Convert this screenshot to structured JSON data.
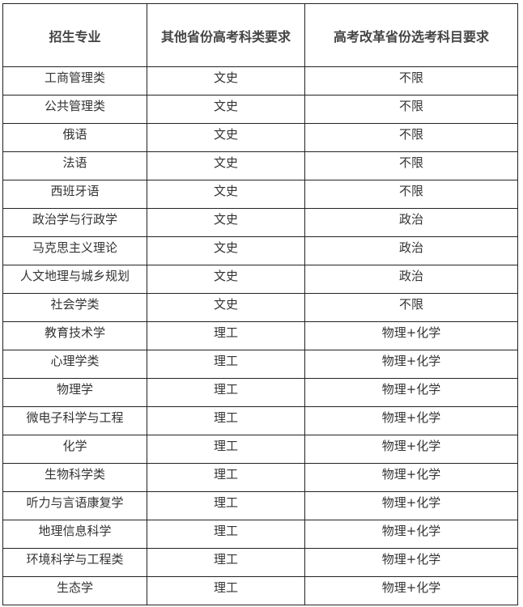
{
  "headers": [
    "招生专业",
    "其他省份高考科类要求",
    "高考改革省份选考科目要求"
  ],
  "rows": [
    [
      "工商管理类",
      "文史",
      "不限"
    ],
    [
      "公共管理类",
      "文史",
      "不限"
    ],
    [
      "俄语",
      "文史",
      "不限"
    ],
    [
      "法语",
      "文史",
      "不限"
    ],
    [
      "西班牙语",
      "文史",
      "不限"
    ],
    [
      "政治学与行政学",
      "文史",
      "政治"
    ],
    [
      "马克思主义理论",
      "文史",
      "政治"
    ],
    [
      "人文地理与城乡规划",
      "文史",
      "政治"
    ],
    [
      "社会学类",
      "文史",
      "不限"
    ],
    [
      "教育技术学",
      "理工",
      "物理+化学"
    ],
    [
      "心理学类",
      "理工",
      "物理+化学"
    ],
    [
      "物理学",
      "理工",
      "物理+化学"
    ],
    [
      "微电子科学与工程",
      "理工",
      "物理+化学"
    ],
    [
      "化学",
      "理工",
      "物理+化学"
    ],
    [
      "生物科学类",
      "理工",
      "物理+化学"
    ],
    [
      "听力与言语康复学",
      "理工",
      "物理+化学"
    ],
    [
      "地理信息科学",
      "理工",
      "物理+化学"
    ],
    [
      "环境科学与工程类",
      "理工",
      "物理+化学"
    ],
    [
      "生态学",
      "理工",
      "物理+化学"
    ]
  ]
}
